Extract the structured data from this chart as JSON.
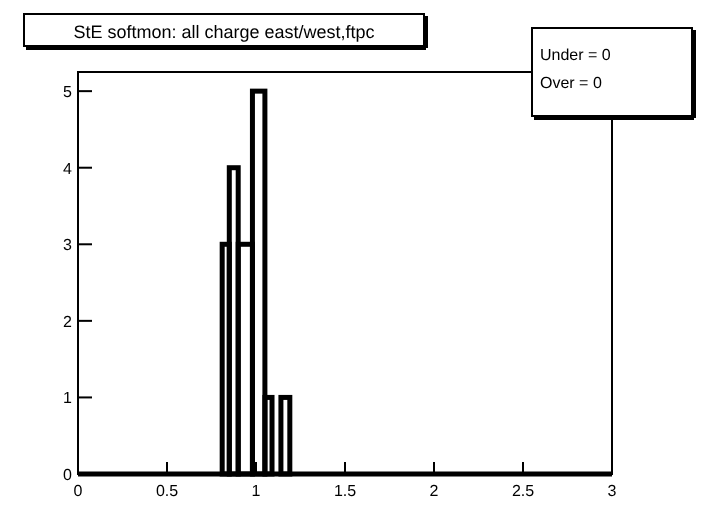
{
  "chart_data": {
    "type": "histogram",
    "title": "StE softmon: all charge east/west,ftpc",
    "bins": [
      0.81,
      0.85,
      0.9,
      0.98,
      1.05,
      1.09,
      1.14,
      1.19
    ],
    "values": [
      3,
      4,
      3,
      5,
      1,
      0,
      1
    ],
    "color": "#000000",
    "xlim": [
      0,
      3
    ],
    "xticks": [
      0,
      0.5,
      1,
      1.5,
      2,
      2.5,
      3
    ],
    "ylim": [
      0,
      5.25
    ],
    "yticks": [
      0,
      1,
      2,
      3,
      4,
      5
    ],
    "grid": false,
    "annotations": [
      "Under = 0",
      "Over = 0"
    ]
  }
}
